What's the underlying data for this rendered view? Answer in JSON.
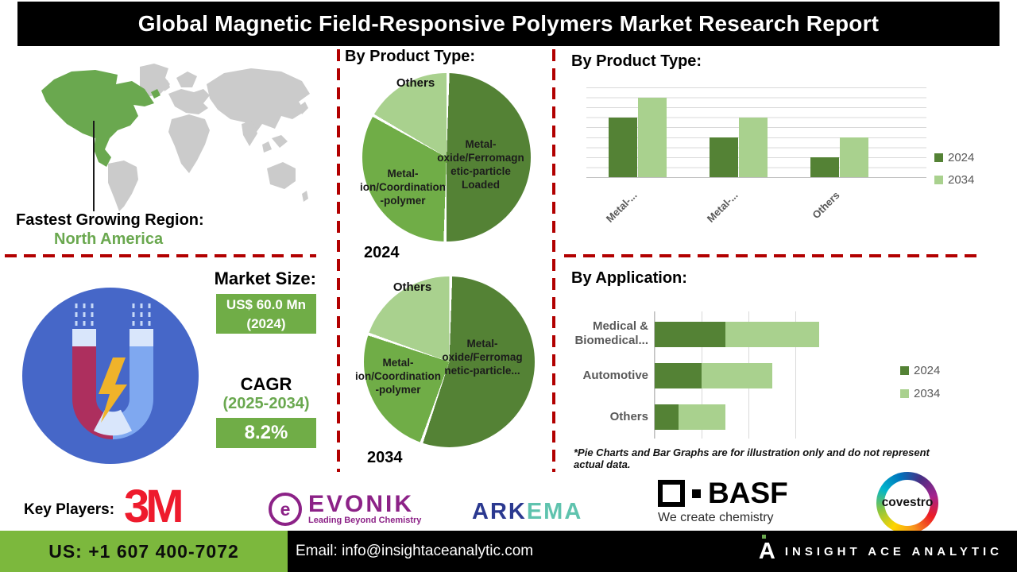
{
  "title": "Global Magnetic Field-Responsive Polymers Market Research Report",
  "map": {
    "label1": "Fastest Growing Region:",
    "label2": "North America"
  },
  "market": {
    "heading": "Market Size:",
    "size_value": "US$ 60.0 Mn",
    "size_year": "(2024)",
    "cagr_label": "CAGR",
    "cagr_period": "(2025-2034)",
    "cagr_value": "8.2%"
  },
  "sections": {
    "pie_heading": "By Product Type:",
    "bar_heading": "By Product Type:",
    "app_heading": "By Application:"
  },
  "footnote": "*Pie Charts and Bar Graphs are for illustration only and do not represent actual data.",
  "key_players": {
    "label": "Key Players:",
    "m3": "3M",
    "evonik": "EVONIK",
    "evonik_icon_letter": "e",
    "evonik_tagline": "Leading Beyond Chemistry",
    "arkema_part1": "ARK",
    "arkema_part2": "EMA",
    "basf": "BASF",
    "basf_tagline": "We create chemistry",
    "covestro": "covestro"
  },
  "footer": {
    "phone": "US: +1 607 400-7072",
    "email": "Email: info@insightaceanalytic.com",
    "brand": "INSIGHT ACE ANALYTIC",
    "brand_glyph": "A"
  },
  "colors": {
    "dark_green": "#548235",
    "mid_green": "#70ad47",
    "light_green": "#a9d18e",
    "na_green": "#6aa84f",
    "dash_red": "#b20000",
    "footer_green": "#7cb83d",
    "circle_blue": "#4667c8"
  },
  "chart_data": [
    {
      "type": "pie",
      "title": "By Product Type:",
      "year_label": "2024",
      "slices": [
        {
          "label": "Metal-oxide/Ferromagnetic-particle Loaded",
          "value": 50,
          "color": "#548235"
        },
        {
          "label": "Metal-ion/Coordination-polymer",
          "value": 33,
          "color": "#70ad47"
        },
        {
          "label": "Others",
          "value": 17,
          "color": "#a9d18e"
        }
      ]
    },
    {
      "type": "pie",
      "title": "By Product Type:",
      "year_label": "2034",
      "slices": [
        {
          "label": "Metal-oxide/Ferromagnetic-particle...",
          "value": 55,
          "color": "#548235"
        },
        {
          "label": "Metal-ion/Coordination-polymer",
          "value": 25,
          "color": "#70ad47"
        },
        {
          "label": "Others",
          "value": 20,
          "color": "#a9d18e"
        }
      ]
    },
    {
      "type": "bar",
      "title": "By Product Type:",
      "categories": [
        "Metal-...",
        "Metal-...",
        "Others"
      ],
      "series": [
        {
          "name": "2024",
          "color": "#548235",
          "values": [
            60,
            40,
            20
          ]
        },
        {
          "name": "2034",
          "color": "#a9d18e",
          "values": [
            80,
            60,
            40
          ]
        }
      ],
      "ylim": [
        0,
        90
      ],
      "grid_step": 10,
      "legend_position": "right",
      "note": "illustrative data"
    },
    {
      "type": "stacked-hbar",
      "title": "By Application:",
      "categories": [
        "Medical & Biomedical...",
        "Automotive",
        "Others"
      ],
      "series": [
        {
          "name": "2024",
          "color": "#548235",
          "values": [
            1.5,
            1.0,
            0.5
          ]
        },
        {
          "name": "2034",
          "color": "#a9d18e",
          "values": [
            2.0,
            1.5,
            1.0
          ]
        }
      ],
      "xlim": [
        0,
        4
      ],
      "legend_position": "right",
      "note": "illustrative data"
    }
  ]
}
